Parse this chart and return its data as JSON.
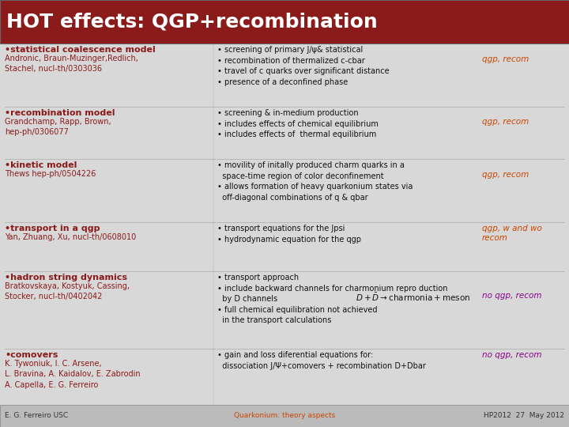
{
  "title": "HOT effects: QGP+recombination",
  "title_bg": "#8B1A1A",
  "title_fg": "white",
  "bg_color": "#D8D8D8",
  "body_black": "#111111",
  "dark_red": "#8B1A1A",
  "orange_red": "#CC4400",
  "purple": "#8B008B",
  "footer_bg": "#BBBBBB",
  "sections": [
    {
      "bullet_title": "•statistical coalescence model",
      "sub_text": "Andronic, Braun-Muzinger,Redlich,\nStachel, nucl-th/0303036",
      "right_text": "• screening of primary J/ψ& statistical\n• recombination of thermalized c-cbar\n• travel of c quarks over significant distance\n• presence of a deconfined phase",
      "tag": "qgp, recom",
      "tag_color": "#CC4400",
      "tag_line": 1
    },
    {
      "bullet_title": "•recombination model",
      "sub_text": "Grandchamp, Rapp, Brown,\nhep-ph/0306077",
      "right_text": "• screening & in-medium production\n• includes effects of chemical equilibrium\n• includes effects of  thermal equilibrium",
      "tag": "qgp, recom",
      "tag_color": "#CC4400",
      "tag_line": 1
    },
    {
      "bullet_title": "•kinetic model",
      "sub_text": "Thews hep-ph/0504226",
      "right_text": "• movility of initally produced charm quarks in a\n  space-time region of color deconfinement\n• allows formation of heavy quarkonium states via\n  off-diagonal combinations of q & qbar",
      "tag": "qgp, recom",
      "tag_color": "#CC4400",
      "tag_line": 1
    },
    {
      "bullet_title": "•transport in a qgp",
      "sub_text": "Yan, Zhuang, Xu, nucl-th/0608010",
      "right_text": "• transport equations for the Jpsi\n• hydrodynamic equation for the qgp",
      "tag": "qgp, w and wo\nrecom",
      "tag_color": "#CC4400",
      "tag_line": 0
    },
    {
      "bullet_title": "•hadron string dynamics",
      "sub_text": "Bratkovskaya, Kostyuk, Cassing,\nStocker, nucl-th/0402042",
      "right_text": "• transport approach\n• include backward channels for charmonium repro duction\n  by D channels\n• full chemical equilibration not achieved\n  in the transport calculations",
      "tag": "no qgp, recom",
      "tag_color": "#8B008B",
      "tag_line": 2,
      "formula": "$D + \\bar{D} \\rightarrow \\mathrm{charmonia} + \\mathrm{meson}$"
    },
    {
      "bullet_title": "•comovers",
      "sub_text": "K. Tywoniuk, I. C. Arsene,\nL. Bravina, A. Kaidalov, E. Zabrodin\nA. Capella, E. G. Ferreiro",
      "right_text": "• gain and loss diferential equations for:\n  dissociation J/Ψ+comovers + recombination D+Dbar",
      "tag": "no qgp, recom",
      "tag_color": "#8B008B",
      "tag_line": 0
    }
  ],
  "footer_left": "E. G. Ferreiro USC",
  "footer_center": "Quarkonium: theory aspects",
  "footer_center_color": "#CC4400",
  "footer_right": "HP2012  27  May 2012",
  "footer_color": "#333333"
}
